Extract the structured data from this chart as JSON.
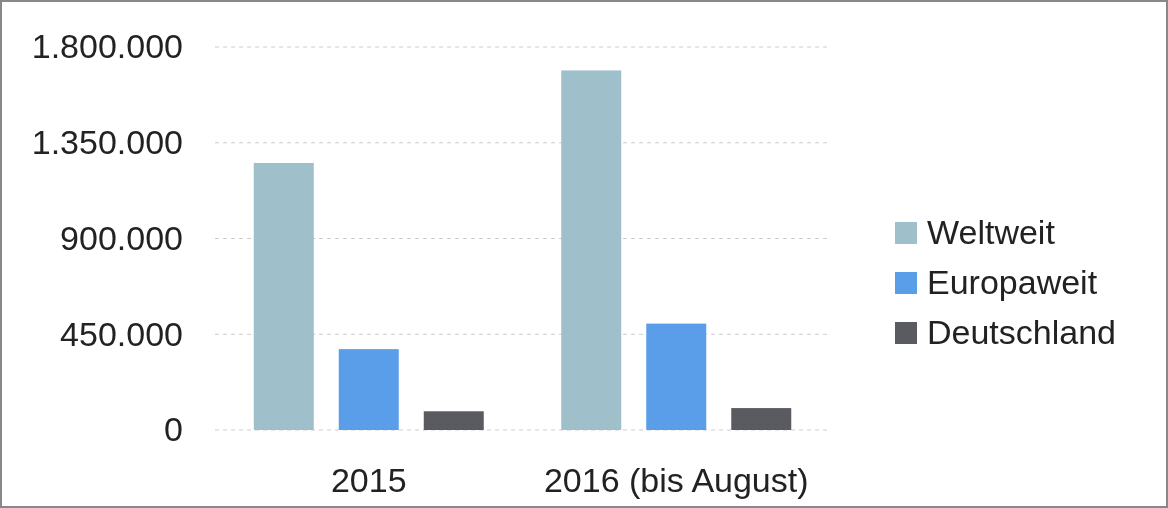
{
  "chart_data": {
    "type": "bar",
    "categories": [
      "2015",
      "2016 (bis August)"
    ],
    "series": [
      {
        "name": "Weltweit",
        "color": "#9fbfcb",
        "values": [
          1255000,
          1690000
        ]
      },
      {
        "name": "Europaweit",
        "color": "#5a9de8",
        "values": [
          380000,
          500000
        ]
      },
      {
        "name": "Deutschland",
        "color": "#5a5b60",
        "values": [
          88000,
          103000
        ]
      }
    ],
    "ylim": [
      0,
      1800000
    ],
    "yticks": [
      {
        "value": 0,
        "label": "0"
      },
      {
        "value": 450000,
        "label": "450.000"
      },
      {
        "value": 900000,
        "label": "900.000"
      },
      {
        "value": 1350000,
        "label": "1.350.000"
      },
      {
        "value": 1800000,
        "label": "1.800.000"
      }
    ],
    "grid": "y",
    "legend": "right"
  }
}
